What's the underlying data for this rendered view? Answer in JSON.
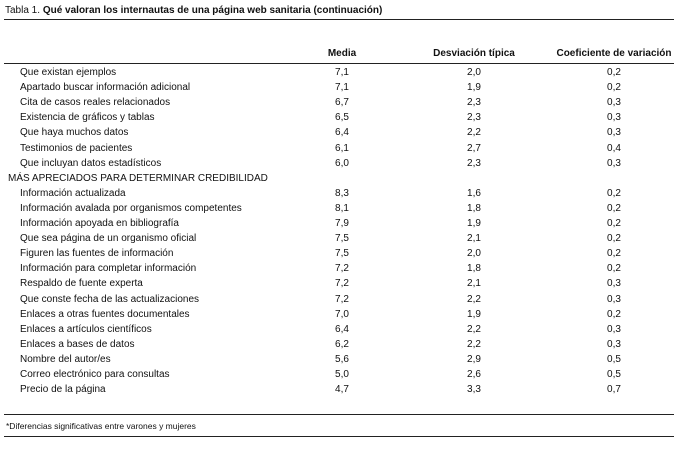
{
  "header": {
    "label": "Tabla 1.",
    "title": "Qué valoran los internautas de una página web sanitaria (continuación)"
  },
  "table": {
    "columns": [
      "Media",
      "Desviación típica",
      "Coeficiente de variación"
    ],
    "rows": [
      [
        "Que existan ejemplos",
        "7,1",
        "2,0",
        "0,2"
      ],
      [
        "Apartado buscar información adicional",
        "7,1",
        "1,9",
        "0,2"
      ],
      [
        "Cita de casos reales relacionados",
        "6,7",
        "2,3",
        "0,3"
      ],
      [
        "Existencia de gráficos y tablas",
        "6,5",
        "2,3",
        "0,3"
      ],
      [
        "Que haya muchos datos",
        "6,4",
        "2,2",
        "0,3"
      ],
      [
        "Testimonios de pacientes",
        "6,1",
        "2,7",
        "0,4"
      ],
      [
        "Que incluyan datos estadísticos",
        "6,0",
        "2,3",
        "0,3"
      ]
    ],
    "section": "MÁS APRECIADOS PARA DETERMINAR CREDIBILIDAD",
    "section_rows": [
      [
        "Información actualizada",
        "8,3",
        "1,6",
        "0,2"
      ],
      [
        "Información avalada por organismos competentes",
        "8,1",
        "1,8",
        "0,2"
      ],
      [
        "Información apoyada en bibliografía",
        "7,9",
        "1,9",
        "0,2"
      ],
      [
        "Que sea página de un organismo oficial",
        "7,5",
        "2,1",
        "0,2"
      ],
      [
        "Figuren las fuentes de información",
        "7,5",
        "2,0",
        "0,2"
      ],
      [
        "Información para completar información",
        "7,2",
        "1,8",
        "0,2"
      ],
      [
        "Respaldo de fuente experta",
        "7,2",
        "2,1",
        "0,3"
      ],
      [
        "Que conste fecha de las actualizaciones",
        "7,2",
        "2,2",
        "0,3"
      ],
      [
        "Enlaces a otras fuentes documentales",
        "7,0",
        "1,9",
        "0,2"
      ],
      [
        "Enlaces a artículos científicos",
        "6,4",
        "2,2",
        "0,3"
      ],
      [
        "Enlaces a bases de datos",
        "6,2",
        "2,2",
        "0,3"
      ],
      [
        "Nombre del autor/es",
        "5,6",
        "2,9",
        "0,5"
      ],
      [
        "Correo electrónico para consultas",
        "5,0",
        "2,6",
        "0,5"
      ],
      [
        "Precio de la página",
        "4,7",
        "3,3",
        "0,7"
      ]
    ]
  },
  "footnote": "*Diferencias significativas entre varones y mujeres"
}
